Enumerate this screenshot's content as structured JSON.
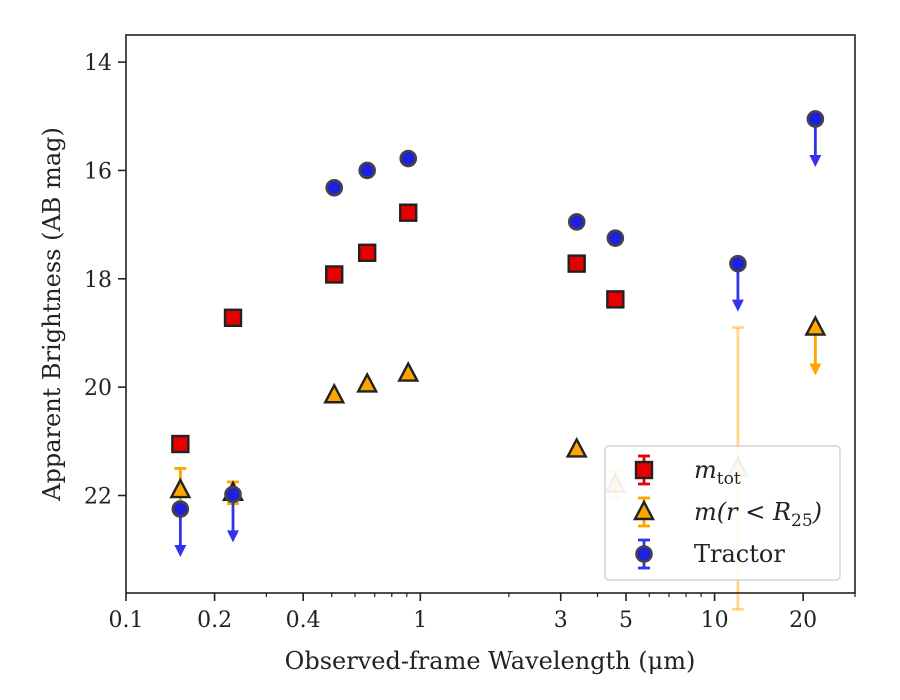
{
  "chart_data": {
    "type": "scatter",
    "xlabel": "Observed-frame Wavelength (μm)",
    "ylabel": "Apparent Brightness (AB mag)",
    "xscale": "log",
    "xlim": [
      0.1,
      30
    ],
    "ylim": [
      23.8,
      13.5
    ],
    "y_inverted": true,
    "grid": false,
    "legend_position": "lower-right",
    "x_ticks": [
      {
        "value": 0.1,
        "label": "0.1"
      },
      {
        "value": 0.2,
        "label": "0.2"
      },
      {
        "value": 0.4,
        "label": "0.4"
      },
      {
        "value": 1,
        "label": "1"
      },
      {
        "value": 3,
        "label": "3"
      },
      {
        "value": 5,
        "label": "5"
      },
      {
        "value": 10,
        "label": "10"
      },
      {
        "value": 20,
        "label": "20"
      }
    ],
    "y_ticks": [
      {
        "value": 14,
        "label": "14"
      },
      {
        "value": 16,
        "label": "16"
      },
      {
        "value": 18,
        "label": "18"
      },
      {
        "value": 20,
        "label": "20"
      },
      {
        "value": 22,
        "label": "22"
      }
    ],
    "series": [
      {
        "name": "m_tot",
        "label_main": "m",
        "label_sub": "tot",
        "marker": "square",
        "color": "#e60000",
        "errcolor": "#e60000",
        "points": [
          {
            "x": 0.153,
            "y": 21.05
          },
          {
            "x": 0.231,
            "y": 18.72
          },
          {
            "x": 0.51,
            "y": 17.92
          },
          {
            "x": 0.66,
            "y": 17.52
          },
          {
            "x": 0.91,
            "y": 16.78
          },
          {
            "x": 3.4,
            "y": 17.72
          },
          {
            "x": 4.6,
            "y": 18.38
          }
        ]
      },
      {
        "name": "m(r < R25)",
        "label_main": "m(r < R",
        "label_sub": "25",
        "label_end": ")",
        "marker": "triangle",
        "color": "#ffa500",
        "errcolor": "#ffa500",
        "points": [
          {
            "x": 0.153,
            "y": 21.9,
            "err": 0.4
          },
          {
            "x": 0.231,
            "y": 21.95,
            "err": 0.2
          },
          {
            "x": 0.51,
            "y": 20.15
          },
          {
            "x": 0.66,
            "y": 19.95
          },
          {
            "x": 0.91,
            "y": 19.75
          },
          {
            "x": 3.4,
            "y": 21.15
          },
          {
            "x": 4.6,
            "y": 21.8,
            "err": 0.25,
            "faded": true
          },
          {
            "x": 12.0,
            "y": 21.5,
            "err": 2.6,
            "faded": true
          },
          {
            "x": 22.0,
            "y": 18.9,
            "upper_limit": true
          }
        ]
      },
      {
        "name": "Tractor",
        "label_main": "Tractor",
        "marker": "circle",
        "color": "#1f1fe0",
        "errcolor": "#3333ee",
        "points": [
          {
            "x": 0.153,
            "y": 22.25,
            "upper_limit": true
          },
          {
            "x": 0.231,
            "y": 21.98,
            "upper_limit": true
          },
          {
            "x": 0.51,
            "y": 16.32
          },
          {
            "x": 0.66,
            "y": 16.0
          },
          {
            "x": 0.91,
            "y": 15.78
          },
          {
            "x": 3.4,
            "y": 16.95
          },
          {
            "x": 4.6,
            "y": 17.25
          },
          {
            "x": 12.0,
            "y": 17.72,
            "upper_limit": true
          },
          {
            "x": 22.0,
            "y": 15.05,
            "upper_limit": true
          }
        ]
      }
    ]
  }
}
